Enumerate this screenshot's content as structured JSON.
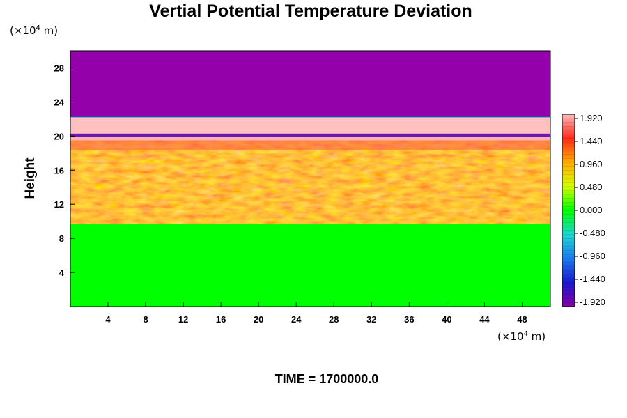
{
  "chart_data": {
    "type": "heatmap",
    "title": "Vertial Potential Temperature Deviation",
    "ylabel": "Height",
    "x_unit": {
      "prefix": "(×10",
      "exp": "4",
      "suffix": " m)"
    },
    "y_unit": {
      "prefix": "(×10",
      "exp": "4",
      "suffix": " m)"
    },
    "xlim": [
      0,
      51
    ],
    "ylim": [
      0,
      30
    ],
    "x_ticks": [
      4,
      8,
      12,
      16,
      20,
      24,
      28,
      32,
      36,
      40,
      44,
      48
    ],
    "y_ticks": [
      4,
      8,
      12,
      16,
      20,
      24,
      28
    ],
    "colorbar": {
      "range": [
        -1.92,
        1.92
      ],
      "labels": [
        "1.920",
        "1.440",
        "0.960",
        "0.480",
        "0.000",
        "-0.480",
        "-0.960",
        "-1.440",
        "-1.920"
      ],
      "stops": [
        {
          "value": -1.92,
          "color": "#8800aa"
        },
        {
          "value": -1.44,
          "color": "#1a1ad0"
        },
        {
          "value": -0.96,
          "color": "#1c7cf0"
        },
        {
          "value": -0.48,
          "color": "#1cd8d0"
        },
        {
          "value": 0.0,
          "color": "#00ff00"
        },
        {
          "value": 0.48,
          "color": "#d8ff00"
        },
        {
          "value": 0.96,
          "color": "#ffaa00"
        },
        {
          "value": 1.44,
          "color": "#ff2a1a"
        },
        {
          "value": 1.92,
          "color": "#ffb8b8"
        }
      ]
    },
    "layers": [
      {
        "name": "lower-neutral",
        "y_range": [
          0,
          9.7
        ],
        "value": 0.0,
        "color": "#00ff00"
      },
      {
        "name": "turbulent-warm",
        "y_range": [
          9.7,
          19.5
        ],
        "value": 1.0,
        "color": "#ffaa00"
      },
      {
        "name": "thin-cold-band",
        "y_range": [
          19.9,
          20.3
        ],
        "value": -1.7,
        "color": "#6a1ab0"
      },
      {
        "name": "warm-band",
        "y_range": [
          20.3,
          22.2
        ],
        "value": 1.92,
        "color": "#ffc0c0"
      },
      {
        "name": "upper-cold",
        "y_range": [
          22.2,
          30
        ],
        "value": -1.92,
        "color": "#9400aa"
      }
    ],
    "time_label": "TIME = 1700000.0"
  }
}
